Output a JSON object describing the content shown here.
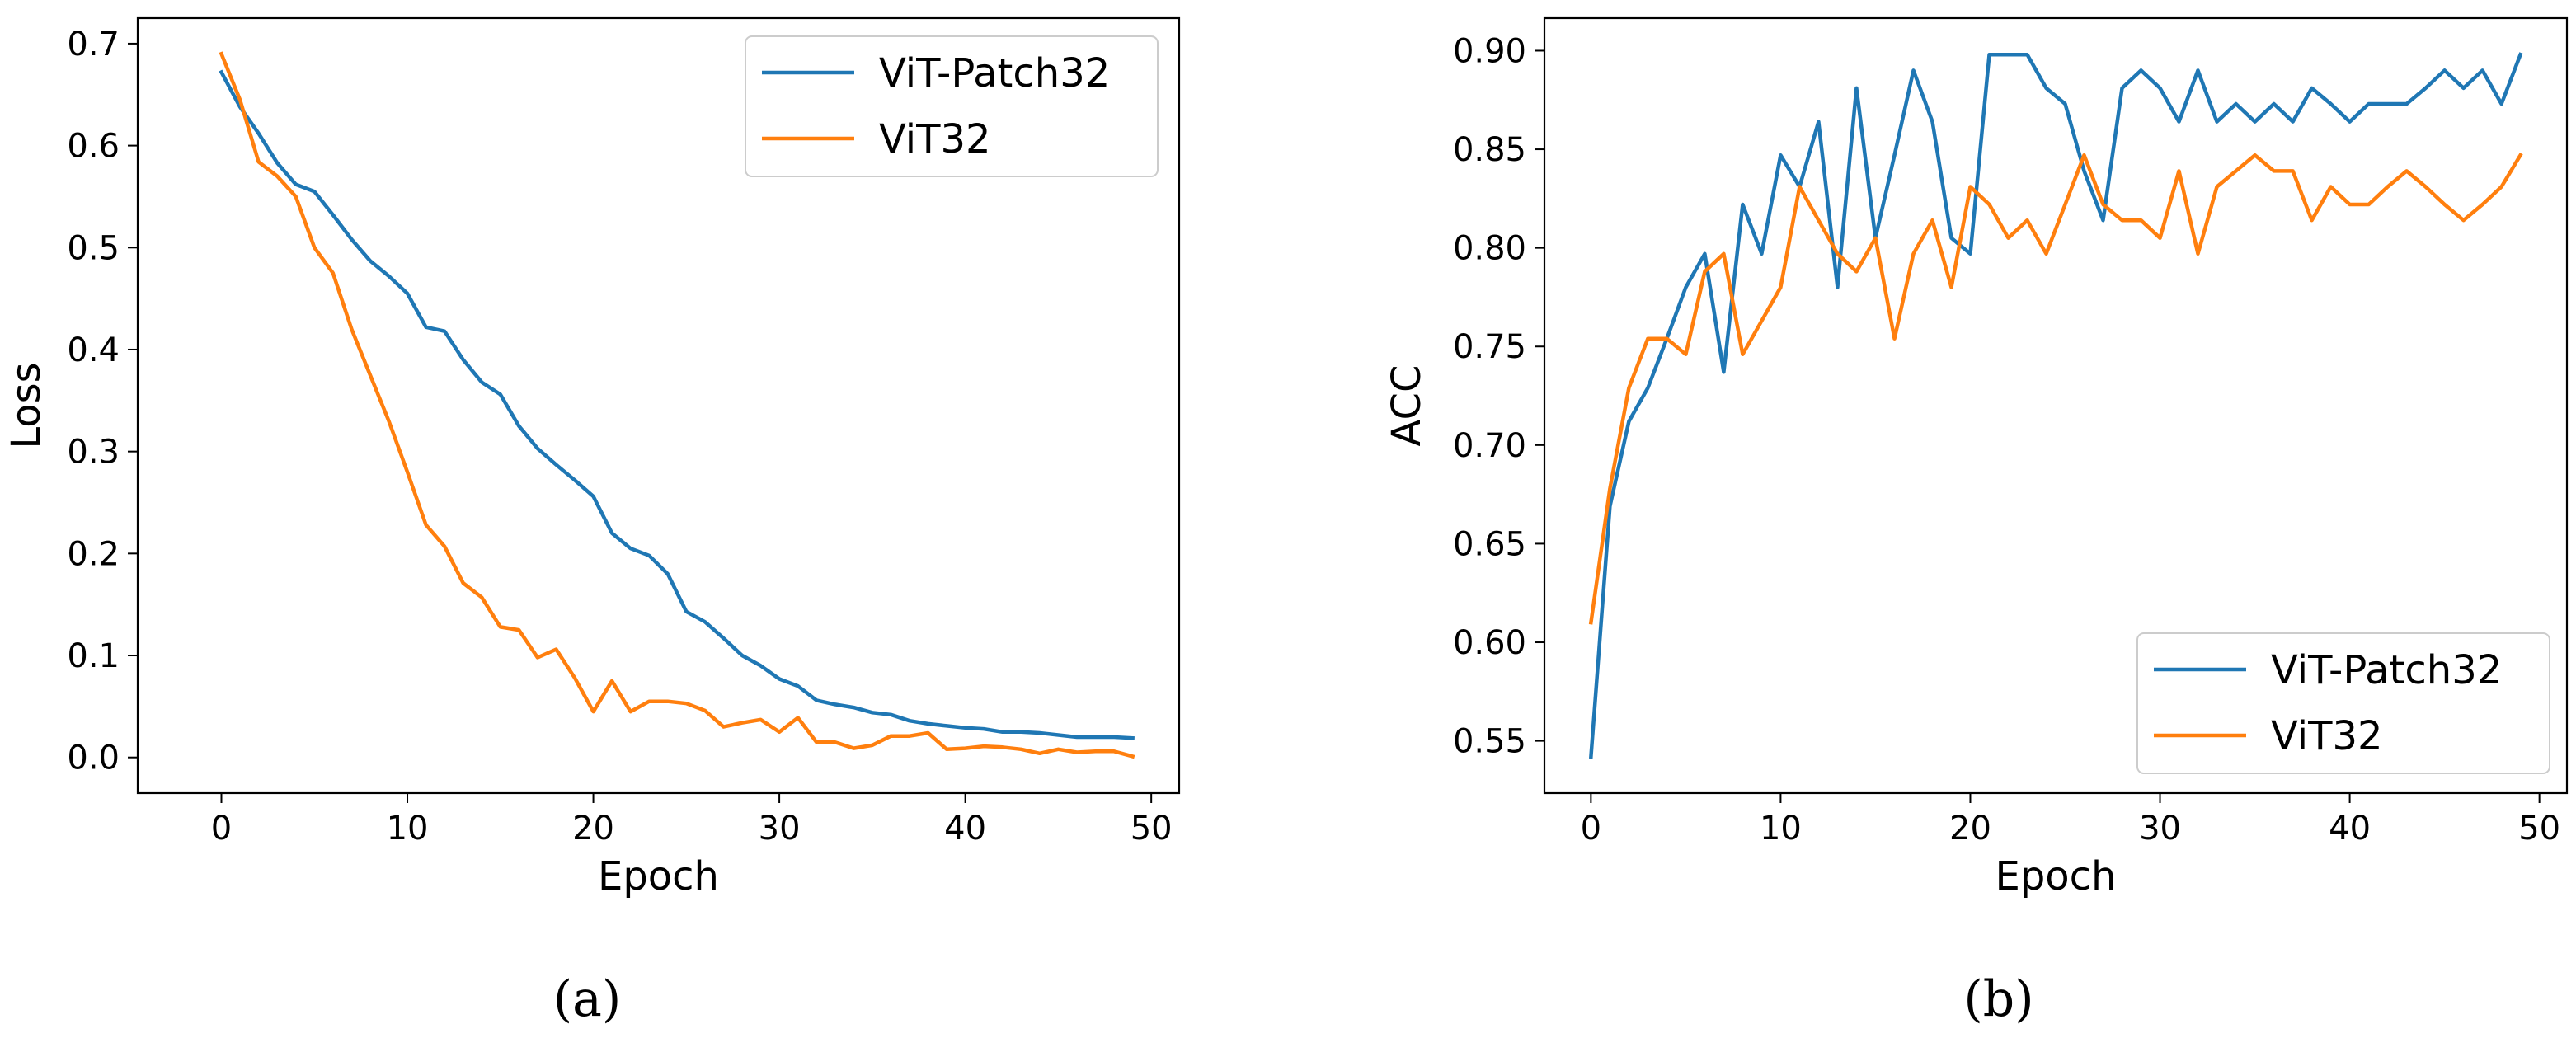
{
  "colors": {
    "blue": "#1f77b4",
    "orange": "#ff7f0e",
    "axis": "#000000",
    "legend_border": "#cccccc"
  },
  "chart_data": [
    {
      "type": "line",
      "panel_label": "(a)",
      "title": "",
      "xlabel": "Epoch",
      "ylabel": "Loss",
      "xlim": [
        -4.5,
        51.5
      ],
      "ylim": [
        -0.035,
        0.725
      ],
      "xticks": [
        0,
        10,
        20,
        30,
        40,
        50
      ],
      "xtick_labels": [
        "0",
        "10",
        "20",
        "30",
        "40",
        "50"
      ],
      "yticks": [
        0.0,
        0.1,
        0.2,
        0.3,
        0.4,
        0.5,
        0.6,
        0.7
      ],
      "ytick_labels": [
        "0.0",
        "0.1",
        "0.2",
        "0.3",
        "0.4",
        "0.5",
        "0.6",
        "0.7"
      ],
      "grid": false,
      "legend_position": "upper right",
      "series": [
        {
          "name": "ViT-Patch32",
          "color": "#1f77b4",
          "x": [
            0,
            1,
            2,
            3,
            4,
            5,
            6,
            7,
            8,
            9,
            10,
            11,
            12,
            13,
            14,
            15,
            16,
            17,
            18,
            19,
            20,
            21,
            22,
            23,
            24,
            25,
            26,
            27,
            28,
            29,
            30,
            31,
            32,
            33,
            34,
            35,
            36,
            37,
            38,
            39,
            40,
            41,
            42,
            43,
            44,
            45,
            46,
            47,
            48,
            49
          ],
          "values": [
            0.672,
            0.638,
            0.612,
            0.583,
            0.562,
            0.555,
            0.532,
            0.508,
            0.487,
            0.472,
            0.455,
            0.422,
            0.418,
            0.39,
            0.368,
            0.356,
            0.325,
            0.303,
            0.287,
            0.272,
            0.256,
            0.22,
            0.205,
            0.198,
            0.18,
            0.143,
            0.133,
            0.117,
            0.1,
            0.09,
            0.077,
            0.07,
            0.056,
            0.052,
            0.049,
            0.044,
            0.042,
            0.036,
            0.033,
            0.031,
            0.029,
            0.028,
            0.025,
            0.025,
            0.024,
            0.022,
            0.02,
            0.02,
            0.02,
            0.019
          ]
        },
        {
          "name": "ViT32",
          "color": "#ff7f0e",
          "x": [
            0,
            1,
            2,
            3,
            4,
            5,
            6,
            7,
            8,
            9,
            10,
            11,
            12,
            13,
            14,
            15,
            16,
            17,
            18,
            19,
            20,
            21,
            22,
            23,
            24,
            25,
            26,
            27,
            28,
            29,
            30,
            31,
            32,
            33,
            34,
            35,
            36,
            37,
            38,
            39,
            40,
            41,
            42,
            43,
            44,
            45,
            46,
            47,
            48,
            49
          ],
          "values": [
            0.69,
            0.645,
            0.584,
            0.57,
            0.55,
            0.5,
            0.475,
            0.42,
            0.375,
            0.33,
            0.28,
            0.228,
            0.207,
            0.171,
            0.157,
            0.128,
            0.125,
            0.098,
            0.106,
            0.078,
            0.045,
            0.075,
            0.045,
            0.055,
            0.055,
            0.053,
            0.046,
            0.03,
            0.034,
            0.037,
            0.025,
            0.039,
            0.015,
            0.015,
            0.009,
            0.012,
            0.021,
            0.021,
            0.024,
            0.008,
            0.009,
            0.011,
            0.01,
            0.008,
            0.004,
            0.008,
            0.005,
            0.006,
            0.006,
            0.001
          ]
        }
      ]
    },
    {
      "type": "line",
      "panel_label": "(b)",
      "title": "",
      "xlabel": "Epoch",
      "ylabel": "ACC",
      "xlim": [
        -2.45,
        51.45
      ],
      "ylim": [
        0.5235,
        0.9165
      ],
      "xticks": [
        0,
        10,
        20,
        30,
        40,
        50
      ],
      "xtick_labels": [
        "0",
        "10",
        "20",
        "30",
        "40",
        "50"
      ],
      "yticks": [
        0.55,
        0.6,
        0.65,
        0.7,
        0.75,
        0.8,
        0.85,
        0.9
      ],
      "ytick_labels": [
        "0.55",
        "0.60",
        "0.65",
        "0.70",
        "0.75",
        "0.80",
        "0.85",
        "0.90"
      ],
      "grid": false,
      "legend_position": "lower right",
      "series": [
        {
          "name": "ViT-Patch32",
          "color": "#1f77b4",
          "x": [
            0,
            1,
            2,
            3,
            4,
            5,
            6,
            7,
            8,
            9,
            10,
            11,
            12,
            13,
            14,
            15,
            16,
            17,
            18,
            19,
            20,
            21,
            22,
            23,
            24,
            25,
            26,
            27,
            28,
            29,
            30,
            31,
            32,
            33,
            34,
            35,
            36,
            37,
            38,
            39,
            40,
            41,
            42,
            43,
            44,
            45,
            46,
            47,
            48,
            49
          ],
          "values": [
            0.542,
            0.669,
            0.712,
            0.729,
            0.754,
            0.78,
            0.797,
            0.737,
            0.822,
            0.797,
            0.847,
            0.831,
            0.864,
            0.78,
            0.881,
            0.805,
            0.847,
            0.89,
            0.864,
            0.805,
            0.797,
            0.898,
            0.898,
            0.898,
            0.881,
            0.873,
            0.839,
            0.814,
            0.881,
            0.89,
            0.881,
            0.864,
            0.89,
            0.864,
            0.873,
            0.864,
            0.873,
            0.864,
            0.881,
            0.873,
            0.864,
            0.873,
            0.873,
            0.873,
            0.881,
            0.89,
            0.881,
            0.89,
            0.873,
            0.898
          ]
        },
        {
          "name": "ViT32",
          "color": "#ff7f0e",
          "x": [
            0,
            1,
            2,
            3,
            4,
            5,
            6,
            7,
            8,
            9,
            10,
            11,
            12,
            13,
            14,
            15,
            16,
            17,
            18,
            19,
            20,
            21,
            22,
            23,
            24,
            25,
            26,
            27,
            28,
            29,
            30,
            31,
            32,
            33,
            34,
            35,
            36,
            37,
            38,
            39,
            40,
            41,
            42,
            43,
            44,
            45,
            46,
            47,
            48,
            49
          ],
          "values": [
            0.61,
            0.678,
            0.729,
            0.754,
            0.754,
            0.746,
            0.788,
            0.797,
            0.746,
            0.763,
            0.78,
            0.831,
            0.814,
            0.797,
            0.788,
            0.805,
            0.754,
            0.797,
            0.814,
            0.78,
            0.831,
            0.822,
            0.805,
            0.814,
            0.797,
            0.822,
            0.847,
            0.822,
            0.814,
            0.814,
            0.805,
            0.839,
            0.797,
            0.831,
            0.839,
            0.847,
            0.839,
            0.839,
            0.814,
            0.831,
            0.822,
            0.822,
            0.831,
            0.839,
            0.831,
            0.822,
            0.814,
            0.822,
            0.831,
            0.847
          ]
        }
      ]
    }
  ]
}
